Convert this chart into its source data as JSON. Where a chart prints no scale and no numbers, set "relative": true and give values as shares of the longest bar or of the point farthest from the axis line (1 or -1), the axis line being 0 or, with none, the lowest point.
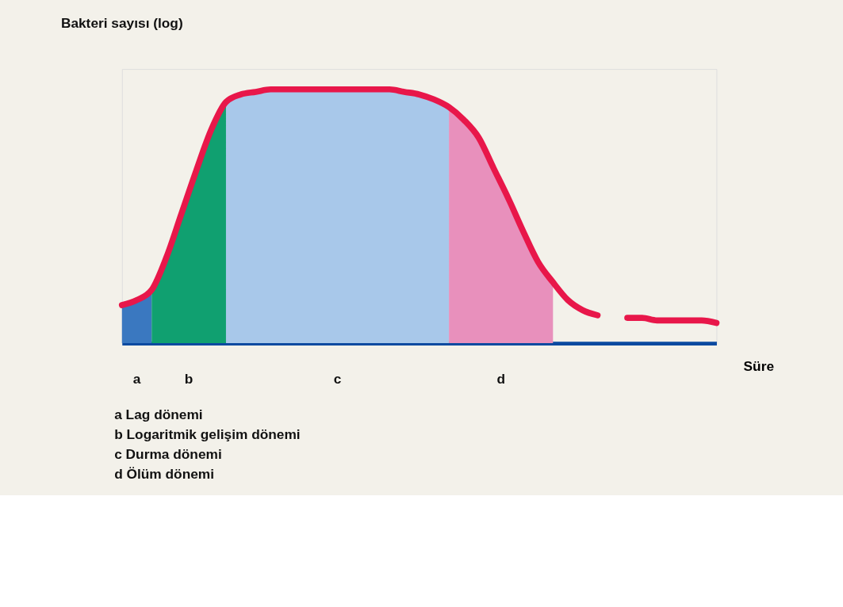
{
  "chart_data": {
    "type": "line",
    "relative": true,
    "ylabel": "Bakteri sayısı (log)",
    "xlabel": "Süre",
    "grid": false,
    "categories": [
      null,
      null,
      null,
      null,
      null,
      null,
      null,
      null,
      null,
      null,
      null,
      null,
      null,
      null,
      null,
      null,
      null,
      null,
      null,
      null,
      null,
      null,
      null,
      null,
      null,
      null,
      null,
      null,
      null,
      null,
      null,
      null,
      null,
      null,
      null,
      null,
      null,
      null,
      null,
      null,
      null
    ],
    "series": [
      {
        "name": "a",
        "type": "area",
        "color": "#3a78c0",
        "values": [
          0.15,
          0.17,
          0.21,
          null,
          null,
          null,
          null,
          null,
          null,
          null,
          null,
          null,
          null,
          null,
          null,
          null,
          null,
          null,
          null,
          null,
          null,
          null,
          null,
          null,
          null,
          null,
          null,
          null,
          null,
          null,
          null,
          null,
          null,
          null,
          null,
          null,
          null,
          null,
          null,
          null,
          null
        ]
      },
      {
        "name": "b",
        "type": "area",
        "color": "#10a070",
        "values": [
          null,
          null,
          0.21,
          0.34,
          0.51,
          0.68,
          0.84,
          0.95,
          null,
          null,
          null,
          null,
          null,
          null,
          null,
          null,
          null,
          null,
          null,
          null,
          null,
          null,
          null,
          null,
          null,
          null,
          null,
          null,
          null,
          null,
          null,
          null,
          null,
          null,
          null,
          null,
          null,
          null,
          null,
          null,
          null
        ]
      },
      {
        "name": "c",
        "type": "area",
        "color": "#a8c8ea",
        "values": [
          null,
          null,
          null,
          null,
          null,
          null,
          null,
          0.95,
          0.98,
          0.99,
          1.0,
          1.0,
          1.0,
          1.0,
          1.0,
          1.0,
          1.0,
          1.0,
          1.0,
          0.99,
          0.98,
          0.96,
          0.93,
          null,
          null,
          null,
          null,
          null,
          null,
          null,
          null,
          null,
          null,
          null,
          null,
          null,
          null,
          null,
          null,
          null,
          null
        ]
      },
      {
        "name": "d",
        "type": "area",
        "color": "#e890bc",
        "values": [
          null,
          null,
          null,
          null,
          null,
          null,
          null,
          null,
          null,
          null,
          null,
          null,
          null,
          null,
          null,
          null,
          null,
          null,
          null,
          null,
          null,
          null,
          0.93,
          0.88,
          0.81,
          0.69,
          0.57,
          0.44,
          0.32,
          0.24,
          null,
          null,
          null,
          null,
          null,
          null,
          null,
          null,
          null,
          null,
          null
        ]
      },
      {
        "color": "#e8174a",
        "values": [
          0.15,
          0.17,
          0.21,
          0.34,
          0.51,
          0.68,
          0.84,
          0.95,
          0.98,
          0.99,
          1.0,
          1.0,
          1.0,
          1.0,
          1.0,
          1.0,
          1.0,
          1.0,
          1.0,
          0.99,
          0.98,
          0.96,
          0.93,
          0.88,
          0.81,
          0.69,
          0.57,
          0.44,
          0.32,
          0.24,
          0.17,
          0.13,
          0.11,
          null,
          0.1,
          0.1,
          0.09,
          0.09,
          0.09,
          0.09,
          0.08
        ]
      }
    ],
    "annotations": [
      "a Lag dönemi",
      "b Logaritmik gelişim dönemi",
      "c Durma dönemi",
      "d Ölüm dönemi"
    ]
  }
}
